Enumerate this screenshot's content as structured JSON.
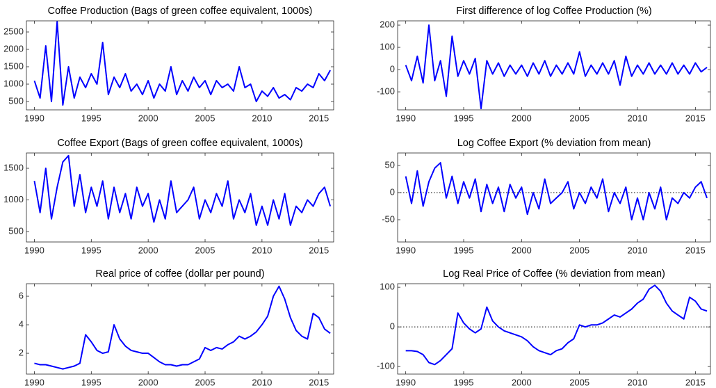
{
  "chart_data": [
    {
      "type": "line",
      "title": "Coffee Production (Bags of green coffee equivalent, 1000s)",
      "x": [
        1990,
        1990.5,
        1991,
        1991.5,
        1992,
        1992.5,
        1993,
        1993.5,
        1994,
        1994.5,
        1995,
        1995.5,
        1996,
        1996.5,
        1997,
        1997.5,
        1998,
        1998.5,
        1999,
        1999.5,
        2000,
        2000.5,
        2001,
        2001.5,
        2002,
        2002.5,
        2003,
        2003.5,
        2004,
        2004.5,
        2005,
        2005.5,
        2006,
        2006.5,
        2007,
        2007.5,
        2008,
        2008.5,
        2009,
        2009.5,
        2010,
        2010.5,
        2011,
        2011.5,
        2012,
        2012.5,
        2013,
        2013.5,
        2014,
        2014.5,
        2015,
        2015.5,
        2016
      ],
      "series": [
        {
          "name": "Coffee Production",
          "color": "#0000ff",
          "values": [
            1100,
            600,
            2100,
            500,
            2800,
            400,
            1500,
            600,
            1200,
            900,
            1300,
            1000,
            2200,
            700,
            1200,
            900,
            1300,
            800,
            1000,
            700,
            1100,
            600,
            1000,
            800,
            1500,
            700,
            1100,
            800,
            1200,
            900,
            1100,
            700,
            1100,
            900,
            1000,
            800,
            1500,
            900,
            1000,
            500,
            800,
            650,
            900,
            600,
            700,
            550,
            900,
            800,
            1000,
            900,
            1300,
            1100,
            1400
          ]
        }
      ],
      "xlim": [
        1989.3,
        2016.3
      ],
      "xticks": [
        1990,
        1995,
        2000,
        2005,
        2010,
        2015
      ],
      "ylim": [
        260,
        2820
      ],
      "yticks": [
        500,
        1000,
        1500,
        2000,
        2500
      ]
    },
    {
      "type": "line",
      "title": "First difference of log Coffee Production (%)",
      "x": [
        1990,
        1990.5,
        1991,
        1991.5,
        1992,
        1992.5,
        1993,
        1993.5,
        1994,
        1994.5,
        1995,
        1995.5,
        1996,
        1996.5,
        1997,
        1997.5,
        1998,
        1998.5,
        1999,
        1999.5,
        2000,
        2000.5,
        2001,
        2001.5,
        2002,
        2002.5,
        2003,
        2003.5,
        2004,
        2004.5,
        2005,
        2005.5,
        2006,
        2006.5,
        2007,
        2007.5,
        2008,
        2008.5,
        2009,
        2009.5,
        2010,
        2010.5,
        2011,
        2011.5,
        2012,
        2012.5,
        2013,
        2013.5,
        2014,
        2014.5,
        2015,
        2015.5,
        2016
      ],
      "series": [
        {
          "name": "First difference of log Coffee Production",
          "color": "#0000ff",
          "values": [
            20,
            -50,
            60,
            -60,
            200,
            -50,
            40,
            -120,
            150,
            -30,
            40,
            -20,
            50,
            -175,
            40,
            -20,
            30,
            -30,
            20,
            -20,
            20,
            -30,
            30,
            -20,
            40,
            -30,
            20,
            -20,
            30,
            -20,
            80,
            -30,
            20,
            -20,
            30,
            -20,
            40,
            -70,
            60,
            -30,
            20,
            -20,
            30,
            -20,
            20,
            -20,
            30,
            -20,
            20,
            -20,
            30,
            -10,
            10
          ]
        }
      ],
      "xlim": [
        1989.3,
        2016.3
      ],
      "xticks": [
        1990,
        1995,
        2000,
        2005,
        2010,
        2015
      ],
      "ylim": [
        -181,
        219
      ],
      "yticks": [
        -100,
        0,
        100,
        200
      ]
    },
    {
      "type": "line",
      "title": "Coffee Export (Bags of green coffee equivalent, 1000s)",
      "x": [
        1990,
        1990.5,
        1991,
        1991.5,
        1992,
        1992.5,
        1993,
        1993.5,
        1994,
        1994.5,
        1995,
        1995.5,
        1996,
        1996.5,
        1997,
        1997.5,
        1998,
        1998.5,
        1999,
        1999.5,
        2000,
        2000.5,
        2001,
        2001.5,
        2002,
        2002.5,
        2003,
        2003.5,
        2004,
        2004.5,
        2005,
        2005.5,
        2006,
        2006.5,
        2007,
        2007.5,
        2008,
        2008.5,
        2009,
        2009.5,
        2010,
        2010.5,
        2011,
        2011.5,
        2012,
        2012.5,
        2013,
        2013.5,
        2014,
        2014.5,
        2015,
        2015.5,
        2016
      ],
      "series": [
        {
          "name": "Coffee Export",
          "color": "#0000ff",
          "values": [
            1300,
            800,
            1500,
            700,
            1200,
            1600,
            1700,
            900,
            1400,
            800,
            1200,
            900,
            1300,
            700,
            1200,
            800,
            1100,
            700,
            1200,
            900,
            1100,
            650,
            1000,
            700,
            1300,
            800,
            900,
            1000,
            1200,
            700,
            1000,
            800,
            1100,
            900,
            1300,
            700,
            1000,
            800,
            1100,
            600,
            900,
            600,
            1000,
            700,
            1100,
            600,
            900,
            800,
            1000,
            900,
            1100,
            1200,
            900
          ]
        }
      ],
      "xlim": [
        1989.3,
        2016.3
      ],
      "xticks": [
        1990,
        1995,
        2000,
        2005,
        2010,
        2015
      ],
      "ylim": [
        335,
        1742
      ],
      "yticks": [
        500,
        1000,
        1500
      ]
    },
    {
      "type": "line",
      "title": "Log Coffee Export (% deviation from mean)",
      "x": [
        1990,
        1990.5,
        1991,
        1991.5,
        1992,
        1992.5,
        1993,
        1993.5,
        1994,
        1994.5,
        1995,
        1995.5,
        1996,
        1996.5,
        1997,
        1997.5,
        1998,
        1998.5,
        1999,
        1999.5,
        2000,
        2000.5,
        2001,
        2001.5,
        2002,
        2002.5,
        2003,
        2003.5,
        2004,
        2004.5,
        2005,
        2005.5,
        2006,
        2006.5,
        2007,
        2007.5,
        2008,
        2008.5,
        2009,
        2009.5,
        2010,
        2010.5,
        2011,
        2011.5,
        2012,
        2012.5,
        2013,
        2013.5,
        2014,
        2014.5,
        2015,
        2015.5,
        2016
      ],
      "series": [
        {
          "name": "Log Coffee Export",
          "color": "#0000ff",
          "values": [
            30,
            -20,
            40,
            -25,
            20,
            45,
            55,
            -10,
            30,
            -20,
            20,
            -10,
            25,
            -35,
            15,
            -20,
            10,
            -35,
            15,
            -10,
            10,
            -40,
            0,
            -30,
            25,
            -20,
            -10,
            0,
            20,
            -30,
            0,
            -20,
            10,
            -10,
            25,
            -35,
            0,
            -20,
            10,
            -50,
            -10,
            -50,
            0,
            -30,
            10,
            -50,
            -10,
            -20,
            0,
            -10,
            10,
            20,
            -10
          ]
        }
      ],
      "xlim": [
        1989.3,
        2016.3
      ],
      "xticks": [
        1990,
        1995,
        2000,
        2005,
        2010,
        2015
      ],
      "ylim": [
        -91,
        73
      ],
      "yticks": [
        -50,
        0,
        50
      ],
      "reference_line": 0
    },
    {
      "type": "line",
      "title": "Real price of coffee (dollar per pound)",
      "x": [
        1990,
        1990.5,
        1991,
        1991.5,
        1992,
        1992.5,
        1993,
        1993.5,
        1994,
        1994.5,
        1995,
        1995.5,
        1996,
        1996.5,
        1997,
        1997.5,
        1998,
        1998.5,
        1999,
        1999.5,
        2000,
        2000.5,
        2001,
        2001.5,
        2002,
        2002.5,
        2003,
        2003.5,
        2004,
        2004.5,
        2005,
        2005.5,
        2006,
        2006.5,
        2007,
        2007.5,
        2008,
        2008.5,
        2009,
        2009.5,
        2010,
        2010.5,
        2011,
        2011.5,
        2012,
        2012.5,
        2013,
        2013.5,
        2014,
        2014.5,
        2015,
        2015.5,
        2016
      ],
      "series": [
        {
          "name": "Real price of coffee",
          "color": "#0000ff",
          "values": [
            1.3,
            1.2,
            1.2,
            1.1,
            1.0,
            0.9,
            1.0,
            1.1,
            1.3,
            3.3,
            2.8,
            2.2,
            2.0,
            2.1,
            4.0,
            3.0,
            2.5,
            2.2,
            2.1,
            2.0,
            2.0,
            1.7,
            1.4,
            1.2,
            1.2,
            1.1,
            1.2,
            1.2,
            1.4,
            1.6,
            2.4,
            2.2,
            2.4,
            2.3,
            2.6,
            2.8,
            3.2,
            3.0,
            3.2,
            3.5,
            4.0,
            4.6,
            6.0,
            6.7,
            5.8,
            4.5,
            3.6,
            3.2,
            3.0,
            4.8,
            4.5,
            3.7,
            3.4
          ]
        }
      ],
      "xlim": [
        1989.3,
        2016.3
      ],
      "xticks": [
        1990,
        1995,
        2000,
        2005,
        2010,
        2015
      ],
      "ylim": [
        0.54,
        6.88
      ],
      "yticks": [
        2,
        4,
        6
      ]
    },
    {
      "type": "line",
      "title": "Log Real Price of Coffee (% deviation from mean)",
      "x": [
        1990,
        1990.5,
        1991,
        1991.5,
        1992,
        1992.5,
        1993,
        1993.5,
        1994,
        1994.5,
        1995,
        1995.5,
        1996,
        1996.5,
        1997,
        1997.5,
        1998,
        1998.5,
        1999,
        1999.5,
        2000,
        2000.5,
        2001,
        2001.5,
        2002,
        2002.5,
        2003,
        2003.5,
        2004,
        2004.5,
        2005,
        2005.5,
        2006,
        2006.5,
        2007,
        2007.5,
        2008,
        2008.5,
        2009,
        2009.5,
        2010,
        2010.5,
        2011,
        2011.5,
        2012,
        2012.5,
        2013,
        2013.5,
        2014,
        2014.5,
        2015,
        2015.5,
        2016
      ],
      "series": [
        {
          "name": "Log Real Price of Coffee",
          "color": "#0000ff",
          "values": [
            -60,
            -60,
            -62,
            -70,
            -90,
            -95,
            -85,
            -70,
            -55,
            35,
            10,
            -5,
            -15,
            -5,
            50,
            15,
            0,
            -10,
            -15,
            -20,
            -25,
            -35,
            -50,
            -60,
            -65,
            -70,
            -60,
            -55,
            -40,
            -30,
            5,
            0,
            5,
            5,
            10,
            20,
            30,
            25,
            35,
            45,
            60,
            70,
            95,
            105,
            90,
            60,
            40,
            30,
            20,
            75,
            65,
            45,
            40
          ]
        }
      ],
      "xlim": [
        1989.3,
        2016.3
      ],
      "xticks": [
        1990,
        1995,
        2000,
        2005,
        2010,
        2015
      ],
      "ylim": [
        -119,
        109
      ],
      "yticks": [
        -100,
        0,
        100
      ],
      "reference_line": 0
    }
  ]
}
